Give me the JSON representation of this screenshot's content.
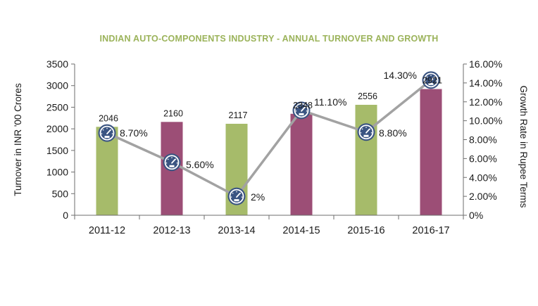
{
  "chart_data": {
    "type": "bar",
    "title": "INDIAN AUTO-COMPONENTS INDUSTRY - ANNUAL TURNOVER AND GROWTH",
    "categories": [
      "2011-12",
      "2012-13",
      "2013-14",
      "2014-15",
      "2015-16",
      "2016-17"
    ],
    "series": [
      {
        "type": "bar",
        "axis": "left",
        "values": [
          2046,
          2160,
          2117,
          2348,
          2556,
          2921
        ],
        "labels": [
          "2046",
          "2160",
          "2117",
          "2348",
          "2556",
          "2921"
        ],
        "colors": [
          "#a6bb6a",
          "#9c4e76",
          "#a6bb6a",
          "#9c4e76",
          "#a6bb6a",
          "#9c4e76"
        ]
      },
      {
        "type": "line",
        "axis": "right",
        "values": [
          8.7,
          5.6,
          2,
          11.1,
          8.8,
          14.3
        ],
        "labels": [
          "8.70%",
          "5.60%",
          "2%",
          "11.10%",
          "8.80%",
          "14.30%"
        ],
        "color": "#a2a2a2",
        "marker": "speedometer-icon"
      }
    ],
    "ylabel": "Turnover in INR '00 Crores",
    "y2label": "Growth Rate in Rupee Terms",
    "ylim": [
      0,
      3500
    ],
    "yticks": [
      0,
      500,
      1000,
      1500,
      2000,
      2500,
      3000,
      3500
    ],
    "ytick_labels": [
      "0",
      "500",
      "1000",
      "1500",
      "2000",
      "2500",
      "3000",
      "3500"
    ],
    "y2lim": [
      0,
      16
    ],
    "y2ticks": [
      0,
      2,
      4,
      6,
      8,
      10,
      12,
      14,
      16
    ],
    "y2tick_labels": [
      "0%",
      "2.00%",
      "4.00%",
      "6.00%",
      "8.00%",
      "10.00%",
      "12.00%",
      "14.00%",
      "16.00%"
    ],
    "grid": false,
    "legend": "none",
    "colors": {
      "title": "#9bb35a",
      "zero_percent": "#4f8f3a",
      "axis": "#6e6e6e",
      "marker_fill": "#3a5482",
      "marker_ring": "#ffffff"
    }
  }
}
